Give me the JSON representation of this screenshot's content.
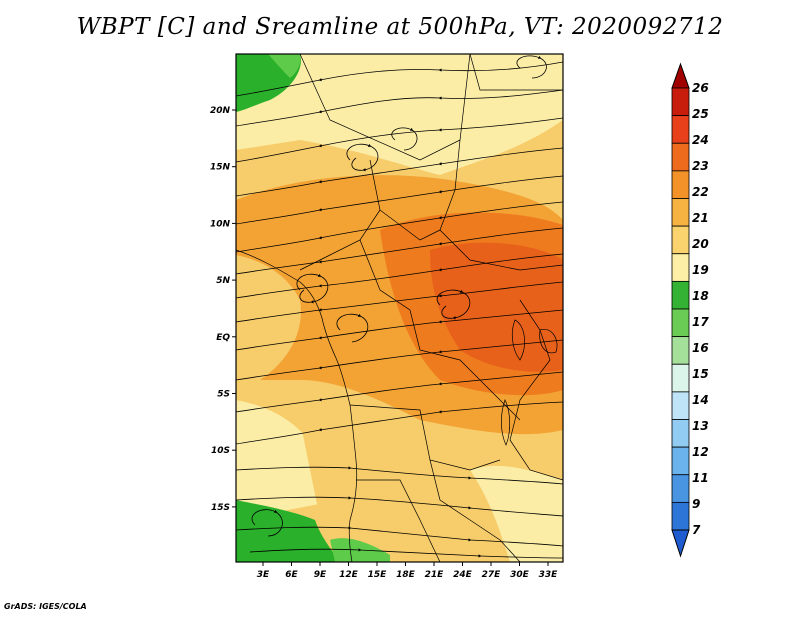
{
  "title": "WBPT [C] and Sreamline at 500hPa, VT: 2020092712",
  "credit": "GrADS: IGES/COLA",
  "map": {
    "lat_labels": [
      "20N",
      "15N",
      "10N",
      "5N",
      "EQ",
      "5S",
      "10S",
      "15S"
    ],
    "lon_labels": [
      "3E",
      "6E",
      "9E",
      "12E",
      "15E",
      "18E",
      "21E",
      "24E",
      "27E",
      "30E",
      "33E"
    ],
    "field_colors": {
      "green": "#2ab02a",
      "light_green": "#5ecb4a",
      "pale_yellow": "#fbeda6",
      "light_orange": "#f7cc6a",
      "orange": "#f3a234",
      "dark_orange": "#ee7b1e",
      "red_orange": "#e8611a"
    }
  },
  "colorbar": {
    "levels": [
      "26",
      "25",
      "24",
      "23",
      "22",
      "21",
      "20",
      "19",
      "18",
      "17",
      "16",
      "15",
      "14",
      "13",
      "12",
      "11",
      "9",
      "7"
    ],
    "colors": [
      "#a00000",
      "#c81d0d",
      "#e8401a",
      "#ee6a1c",
      "#f29228",
      "#f6b341",
      "#fad26e",
      "#fdf0a6",
      "#33b233",
      "#6acc55",
      "#a5e09a",
      "#dcf5ea",
      "#bfe3f7",
      "#93ccf2",
      "#6bb3ec",
      "#4a95e2",
      "#2e75d8",
      "#1f5cd0"
    ]
  }
}
